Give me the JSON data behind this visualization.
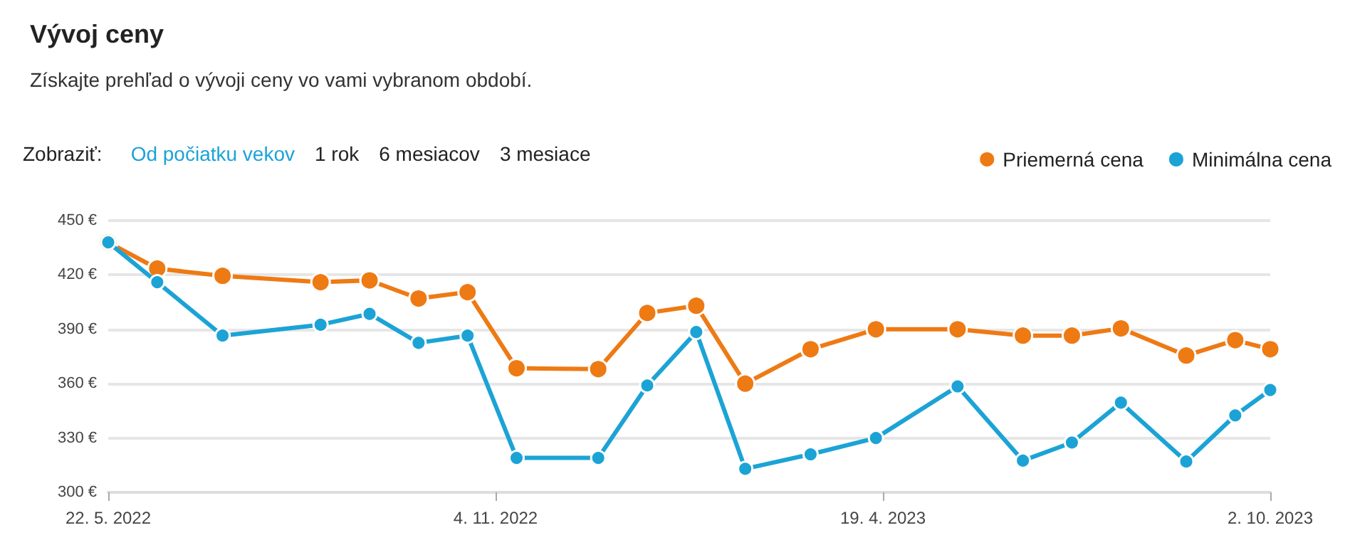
{
  "chart_data": {
    "type": "line",
    "title": "Vývoj ceny",
    "subtitle": "Získajte prehľad o vývoji ceny vo vami vybranom období.",
    "annotations": [
      "Zobraziť:",
      "Od počiatku vekov",
      "1 rok",
      "6 mesiacov",
      "3 mesiace"
    ],
    "x": [
      "2022-05-22",
      "2022-06-12",
      "2022-07-10",
      "2022-08-21",
      "2022-09-11",
      "2022-10-02",
      "2022-10-23",
      "2022-11-13",
      "2022-12-18",
      "2023-01-08",
      "2023-01-29",
      "2023-02-19",
      "2023-03-19",
      "2023-04-16",
      "2023-05-21",
      "2023-06-18",
      "2023-07-09",
      "2023-07-30",
      "2023-08-27",
      "2023-09-17",
      "2023-10-02"
    ],
    "series": [
      {
        "name": "Priemerná cena",
        "color": "#ee7a14",
        "values": [
          438,
          423.5,
          419.5,
          416,
          417,
          407,
          410.5,
          368.5,
          368,
          399,
          403,
          360,
          379,
          390,
          390,
          386.5,
          386.5,
          390.5,
          375.5,
          384,
          379
        ]
      },
      {
        "name": "Minimálna cena",
        "color": "#1ca3d6",
        "values": [
          438,
          416,
          386.5,
          392.5,
          398.5,
          382.5,
          386.5,
          319,
          319,
          359,
          388.5,
          313,
          321,
          330,
          358.5,
          317.5,
          327.5,
          349.5,
          317,
          342.5,
          356.5
        ]
      }
    ],
    "xlim": [
      "2022-05-22",
      "2023-10-02"
    ],
    "xticks": [
      {
        "value": "2022-05-22",
        "label": "22. 5. 2022"
      },
      {
        "value": "2022-11-04",
        "label": "4. 11. 2022"
      },
      {
        "value": "2023-04-19",
        "label": "19. 4. 2023"
      },
      {
        "value": "2023-10-02",
        "label": "2. 10. 2023"
      }
    ],
    "ylim": [
      300,
      450
    ],
    "yticks": [
      {
        "value": 300,
        "label": "300 €"
      },
      {
        "value": 330,
        "label": "330 €"
      },
      {
        "value": 360,
        "label": "360 €"
      },
      {
        "value": 390,
        "label": "390 €"
      },
      {
        "value": 420,
        "label": "420 €"
      },
      {
        "value": 450,
        "label": "450 €"
      }
    ],
    "grid": "y",
    "legend": "top right",
    "marker": "circle",
    "line_style": "solid"
  }
}
